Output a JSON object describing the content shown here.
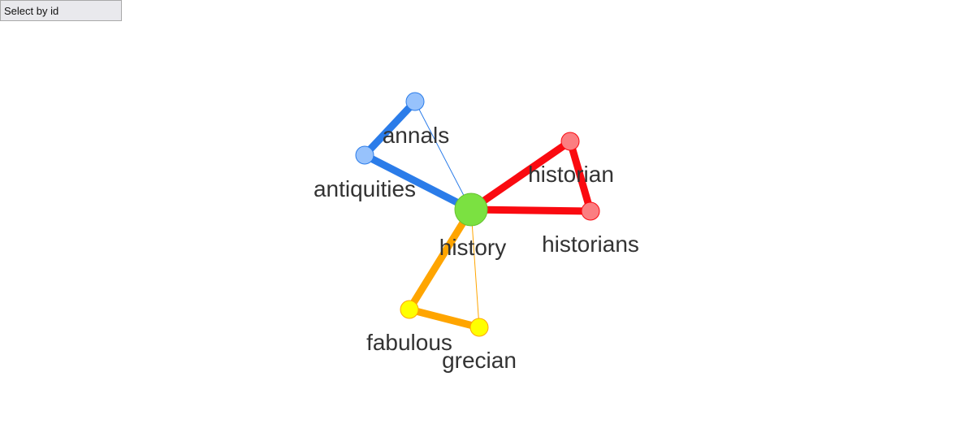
{
  "toolbar": {
    "select_label": "Select by id"
  },
  "graph": {
    "nodes": [
      {
        "id": "history",
        "label": "history",
        "group": "center",
        "fill": "#7be141",
        "stroke": "#66c232"
      },
      {
        "id": "annals",
        "label": "annals",
        "group": "blue",
        "fill": "#97c2fc",
        "stroke": "#2b7ce9"
      },
      {
        "id": "antiquities",
        "label": "antiquities",
        "group": "blue",
        "fill": "#97c2fc",
        "stroke": "#2b7ce9"
      },
      {
        "id": "historian",
        "label": "historian",
        "group": "red",
        "fill": "#fb7e81",
        "stroke": "#fa0a10"
      },
      {
        "id": "historians",
        "label": "historians",
        "group": "red",
        "fill": "#fb7e81",
        "stroke": "#fa0a10"
      },
      {
        "id": "fabulous",
        "label": "fabulous",
        "group": "yellow",
        "fill": "#ffff00",
        "stroke": "#ffa500"
      },
      {
        "id": "grecian",
        "label": "grecian",
        "group": "yellow",
        "fill": "#ffff00",
        "stroke": "#ffa500"
      }
    ],
    "edges": [
      {
        "from": "annals",
        "to": "antiquities",
        "color": "#2b7ce9",
        "weight": "heavy"
      },
      {
        "from": "antiquities",
        "to": "history",
        "color": "#2b7ce9",
        "weight": "heavy"
      },
      {
        "from": "annals",
        "to": "history",
        "color": "#2b7ce9",
        "weight": "light"
      },
      {
        "from": "historian",
        "to": "history",
        "color": "#fa0a10",
        "weight": "heavy"
      },
      {
        "from": "historians",
        "to": "history",
        "color": "#fa0a10",
        "weight": "heavy"
      },
      {
        "from": "historian",
        "to": "historians",
        "color": "#fa0a10",
        "weight": "heavy"
      },
      {
        "from": "fabulous",
        "to": "history",
        "color": "#ffa500",
        "weight": "heavy"
      },
      {
        "from": "fabulous",
        "to": "grecian",
        "color": "#ffa500",
        "weight": "heavy"
      },
      {
        "from": "grecian",
        "to": "history",
        "color": "#ffa500",
        "weight": "light"
      }
    ]
  }
}
